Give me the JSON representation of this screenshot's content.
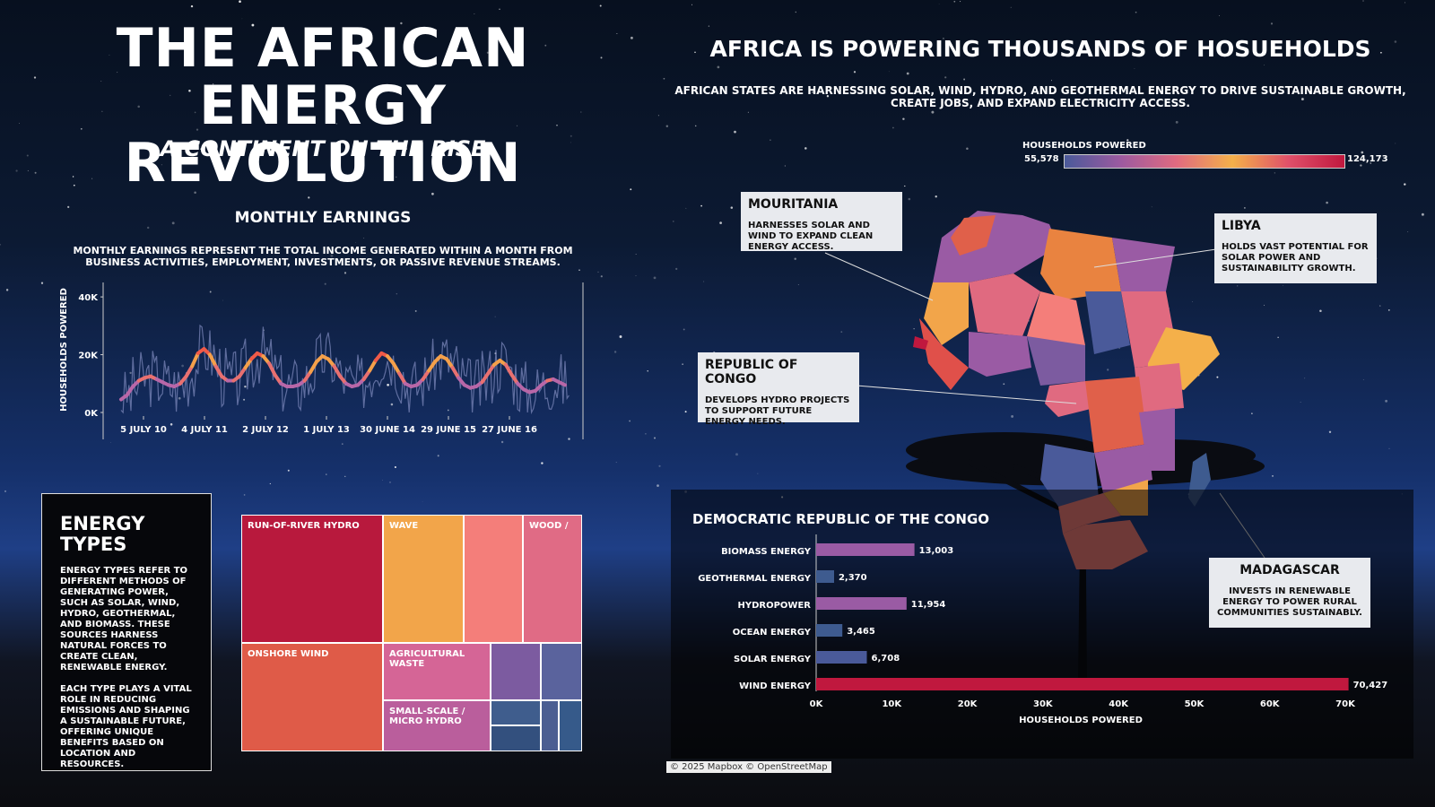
{
  "header": {
    "title_line1": "THE AFRICAN ENERGY",
    "title_line2": "REVOLUTION",
    "subtitle": "A CONTINENT ON THE RISE"
  },
  "right_header": {
    "title": "AFRICA IS POWERING THOUSANDS OF HOSUEHOLDS",
    "description": "AFRICAN STATES ARE HARNESSING SOLAR, WIND, HYDRO, AND GEOTHERMAL ENERGY TO DRIVE SUSTAINABLE GROWTH, CREATE JOBS, AND EXPAND ELECTRICITY ACCESS."
  },
  "map_legend": {
    "label": "HOUSEHOLDS POWERED",
    "min": "55,578",
    "max": "124,173",
    "colors": [
      "#4a5a9a",
      "#9c5aa0",
      "#e06a80",
      "#f4b04a",
      "#e0506a",
      "#c0183e"
    ]
  },
  "callouts": {
    "mauritania": {
      "title": "MOURITANIA",
      "text": "HARNESSES SOLAR AND WIND TO EXPAND CLEAN ENERGY ACCESS."
    },
    "libya": {
      "title": "LIBYA",
      "text": "HOLDS VAST POTENTIAL FOR SOLAR POWER AND SUSTAINABILITY GROWTH."
    },
    "congo": {
      "title": "REPUBLIC OF CONGO",
      "text": "DEVELOPS HYDRO PROJECTS TO SUPPORT FUTURE ENERGY NEEDS."
    },
    "madagascar": {
      "title": "MADAGASCAR",
      "text": "INVESTS IN RENEWABLE ENERGY TO POWER RURAL COMMUNITIES SUSTAINABLY."
    }
  },
  "monthly": {
    "title": "MONTHLY EARNINGS",
    "description": "MONTHLY EARNINGS REPRESENT THE TOTAL INCOME GENERATED WITHIN A MONTH FROM BUSINESS ACTIVITIES, EMPLOYMENT, INVESTMENTS, OR PASSIVE REVENUE STREAMS."
  },
  "energy_types": {
    "title_line1": "ENERGY",
    "title_line2": "TYPES",
    "para1": "ENERGY TYPES REFER TO DIFFERENT METHODS OF GENERATING POWER, SUCH AS SOLAR, WIND, HYDRO, GEOTHERMAL, AND BIOMASS. THESE SOURCES HARNESS NATURAL FORCES TO CREATE CLEAN, RENEWABLE ENERGY.",
    "para2": "EACH TYPE PLAYS A VITAL ROLE IN REDUCING EMISSIONS AND SHAPING A SUSTAINABLE FUTURE, OFFERING UNIQUE BENEFITS BASED ON LOCATION AND RESOURCES."
  },
  "attribution": "© 2025 Mapbox © OpenStreetMap",
  "chart_data": [
    {
      "type": "line",
      "ylabel": "HOUSEHOLDS POWERED",
      "xlabel": "",
      "ylim": [
        0,
        45000
      ],
      "yticks": [
        "0K",
        "20K",
        "40K"
      ],
      "xticks": [
        "5 JULY 10",
        "4 JULY 11",
        "2 JULY 12",
        "1 JULY 13",
        "30 JUNE 14",
        "29 JUNE 15",
        "27 JUNE 16"
      ],
      "x_range": [
        2009.5,
        2016.8
      ],
      "series": [
        {
          "values_smooth": [
            4500,
            6000,
            9000,
            11000,
            12000,
            12500,
            11500,
            10500,
            9500,
            9000,
            10000,
            12500,
            16000,
            20500,
            22000,
            20000,
            16000,
            12500,
            11000,
            11000,
            12500,
            15500,
            18500,
            20500,
            19500,
            17000,
            13000,
            10000,
            9000,
            9000,
            9500,
            11000,
            14000,
            17500,
            19500,
            18500,
            16000,
            12500,
            10000,
            9000,
            9500,
            11500,
            14500,
            18000,
            20500,
            19500,
            17000,
            13500,
            10000,
            9000,
            9500,
            11500,
            14500,
            17500,
            19500,
            18500,
            15500,
            12000,
            9500,
            8500,
            9000,
            10500,
            13500,
            16500,
            18000,
            16500,
            13000,
            10000,
            8000,
            7000,
            7500,
            9500,
            11000,
            11500,
            10500,
            9500
          ]
        }
      ]
    },
    {
      "type": "treemap",
      "categories": [
        "Run-of-River Hydro",
        "Wave",
        "",
        "Wood /",
        "Onshore Wind",
        "Agricultural Waste",
        "Small-Scale / Micro Hydro",
        "",
        "",
        "",
        "",
        "",
        "",
        ""
      ],
      "labels": [
        "RUN-OF-RIVER HYDRO",
        "WAVE",
        "",
        "WOOD /",
        "ONSHORE WIND",
        "AGRICULTURAL WASTE",
        "SMALL-SCALE / MICRO HYDRO",
        "",
        "",
        "",
        "",
        "",
        "",
        ""
      ],
      "colors": [
        "#b8193d",
        "#f2a54a",
        "#f47e7a",
        "#e06b85",
        "#df5b48",
        "#d56596",
        "#ba5e9c",
        "#7c5ba0",
        "#5a639d",
        "#3f5d8d",
        "#33507e",
        "#4b5e92",
        "#365a8a",
        "#2f4f7e"
      ]
    },
    {
      "type": "bar",
      "title": "DEMOCRATIC REPUBLIC OF THE CONGO",
      "categories": [
        "BIOMASS ENERGY",
        "GEOTHERMAL ENERGY",
        "HYDROPOWER",
        "OCEAN ENERGY",
        "SOLAR ENERGY",
        "WIND ENERGY"
      ],
      "values": [
        13003,
        2370,
        11954,
        3465,
        6708,
        70427
      ],
      "value_labels": [
        "13,003",
        "2,370",
        "11,954",
        "3,465",
        "6,708",
        "70,427"
      ],
      "colors": [
        "#9a5ba4",
        "#3e5b8f",
        "#9a5ba4",
        "#3e5b8f",
        "#4a5a9a",
        "#c0183e"
      ],
      "xlabel": "HOUSEHOLDS POWERED",
      "xticks": [
        "0K",
        "10K",
        "20K",
        "30K",
        "40K",
        "50K",
        "60K",
        "70K"
      ],
      "xlim": [
        0,
        70000
      ]
    }
  ]
}
